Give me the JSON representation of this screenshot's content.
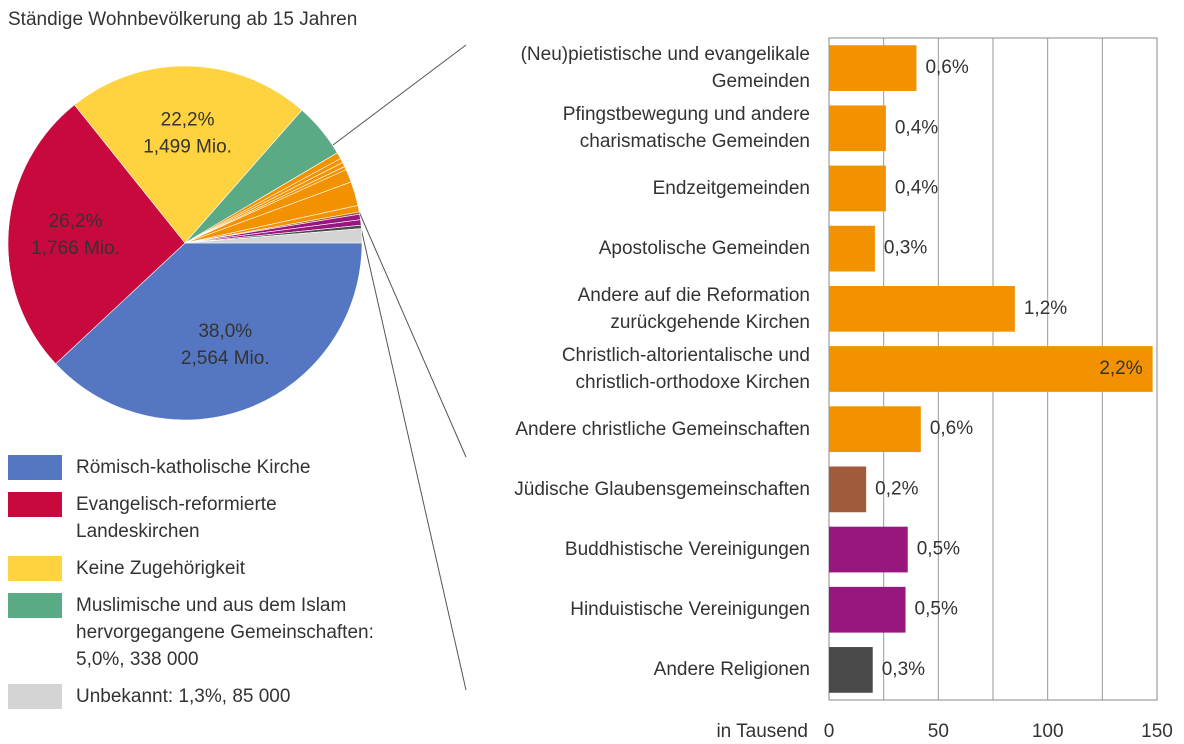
{
  "chart_data": [
    {
      "type": "pie",
      "title": "Ständige Wohnbevölkerung ab 15 Jahren",
      "categories": [
        "Römisch-katholische Kirche",
        "Evangelisch-reformierte\nLandeskirchen",
        "Keine Zugehörigkeit",
        "Muslimische und aus dem Islam\nhervorgegangene Gemeinschaften:\n5,0%, 338 000",
        null,
        null,
        null,
        null,
        null,
        null,
        null,
        null,
        null,
        null,
        null,
        "Unbekannt: 1,3%, 85 000"
      ],
      "values": [
        38.0,
        26.2,
        22.2,
        5.0,
        0.6,
        0.4,
        0.4,
        0.3,
        1.2,
        2.2,
        0.6,
        0.2,
        0.5,
        0.5,
        0.3,
        1.3
      ],
      "value_labels": [
        "38,0%",
        "26,2%",
        "22,2%",
        null,
        null,
        null,
        null,
        null,
        null,
        null,
        null,
        null,
        null,
        null,
        null,
        null
      ],
      "amount_labels": [
        "2,564 Mio.",
        "1,766 Mio.",
        "1,499 Mio.",
        null,
        null,
        null,
        null,
        null,
        null,
        null,
        null,
        null,
        null,
        null,
        null,
        null
      ],
      "colors": [
        "#5577c2",
        "#c8093d",
        "#ffd23f",
        "#5aaa86",
        "#f39200",
        "#f39200",
        "#f39200",
        "#f39200",
        "#f39200",
        "#f39200",
        "#f39200",
        "#a05a3c",
        "#98177f",
        "#98177f",
        "#4a4a4a",
        "#d4d4d4"
      ]
    },
    {
      "type": "hbar",
      "categories": [
        "(Neu)pietistische und evangelikale\nGemeinden",
        "Pfingstbewegung und andere\ncharismatische Gemeinden",
        "Endzeitgemeinden",
        "Apostolische Gemeinden",
        "Andere auf die Reformation\nzurückgehende Kirchen",
        "Christlich-altorientalische und\nchristlich-orthodoxe Kirchen",
        "Andere christliche Gemeinschaften",
        "Jüdische Glaubensgemeinschaften",
        "Buddhistische Vereinigungen",
        "Hinduistische Vereinigungen",
        "Andere Religionen"
      ],
      "values": [
        40,
        26,
        26,
        21,
        85,
        148,
        42,
        17,
        36,
        35,
        20
      ],
      "share_labels": [
        "0,6%",
        "0,4%",
        "0,4%",
        "0,3%",
        "1,2%",
        "2,2%",
        "0,6%",
        "0,2%",
        "0,5%",
        "0,5%",
        "0,3%"
      ],
      "colors": [
        "#f39200",
        "#f39200",
        "#f39200",
        "#f39200",
        "#f39200",
        "#f39200",
        "#f39200",
        "#a05a3c",
        "#98177f",
        "#98177f",
        "#4a4a4a"
      ],
      "xlabel": "in Tausend",
      "xlim": [
        0,
        150
      ],
      "xticks": [
        0,
        50,
        100,
        150
      ],
      "minor_xticks": [
        25,
        75,
        125
      ],
      "grid": true
    }
  ]
}
